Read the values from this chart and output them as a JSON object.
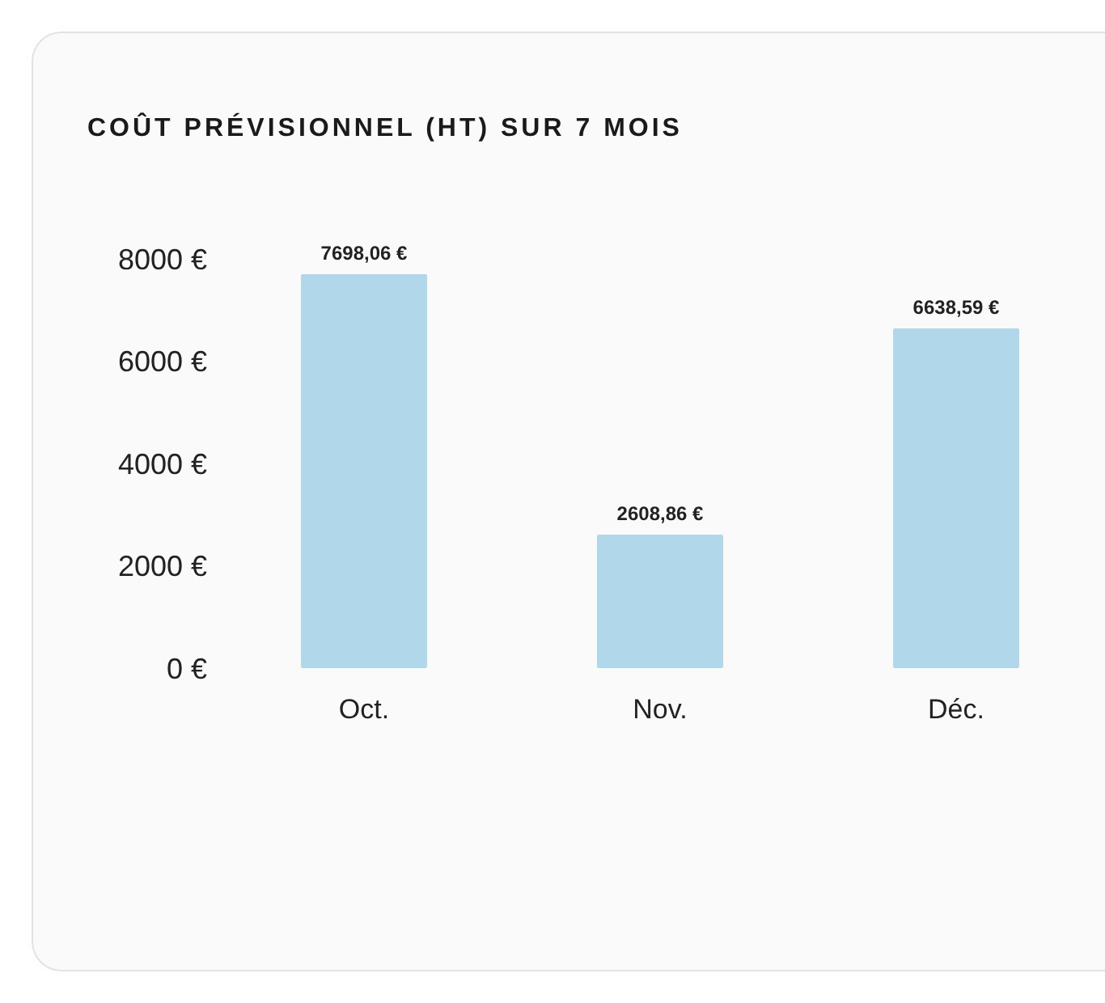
{
  "chart_data": {
    "type": "bar",
    "title": "COÛT PRÉVISIONNEL (HT) SUR 7 MOIS",
    "categories": [
      "Oct.",
      "Nov.",
      "Déc."
    ],
    "values": [
      7698.06,
      2608.86,
      6638.59
    ],
    "value_labels": [
      "7698,06 €",
      "2608,86 €",
      "6638,59 €"
    ],
    "color": "#b0d8ea",
    "ylim": [
      0,
      8000
    ],
    "yticks": [
      {
        "value": 0,
        "label": "0 €"
      },
      {
        "value": 2000,
        "label": "2000 €"
      },
      {
        "value": 4000,
        "label": "4000 €"
      },
      {
        "value": 6000,
        "label": "6000 €"
      },
      {
        "value": 8000,
        "label": "8000 €"
      }
    ],
    "grid": false
  }
}
